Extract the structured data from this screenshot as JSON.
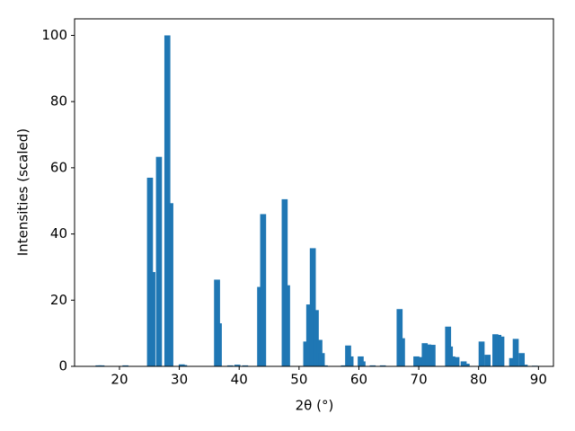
{
  "chart_data": {
    "type": "bar",
    "x_label": "2θ (°)",
    "y_label": "Intensities (scaled)",
    "color": "#1f77b4",
    "bar_width": 1,
    "x": [
      16.5,
      17.0,
      21.0,
      25.1,
      25.5,
      26.6,
      28.0,
      28.5,
      30.4,
      30.8,
      36.3,
      36.6,
      38.5,
      39.7,
      41.0,
      43.5,
      44.0,
      47.6,
      48.0,
      51.2,
      51.7,
      52.3,
      52.8,
      53.4,
      53.8,
      54.3,
      57.5,
      58.2,
      58.6,
      60.3,
      60.6,
      62.3,
      64.0,
      66.8,
      67.2,
      69.6,
      70.3,
      71.0,
      71.6,
      72.3,
      74.9,
      75.2,
      75.6,
      76.3,
      77.5,
      78.0,
      80.5,
      81.5,
      82.8,
      83.3,
      83.8,
      85.6,
      86.2,
      87.2,
      87.7,
      89.4
    ],
    "values": [
      0.3,
      0.3,
      0.3,
      57,
      28.5,
      63.3,
      100,
      49.3,
      0.6,
      0.4,
      26.2,
      13,
      0.3,
      0.5,
      0.3,
      24,
      46,
      50.5,
      24.5,
      7.5,
      18.7,
      35.7,
      17,
      8,
      4,
      0.3,
      0.3,
      6.3,
      3,
      3,
      1.5,
      0.3,
      0.3,
      17.3,
      8.5,
      3,
      2.8,
      7,
      6.6,
      6.5,
      12,
      6,
      3,
      2.8,
      1.5,
      0.8,
      7.5,
      3.5,
      9.7,
      9.5,
      9,
      2.5,
      8.3,
      4,
      0.5,
      0.2
    ],
    "xlim": [
      12.5,
      92.5
    ],
    "xticks": [
      20,
      30,
      40,
      50,
      60,
      70,
      80,
      90
    ],
    "ylim": [
      0,
      105
    ],
    "yticks": [
      0,
      20,
      40,
      60,
      80,
      100
    ]
  }
}
